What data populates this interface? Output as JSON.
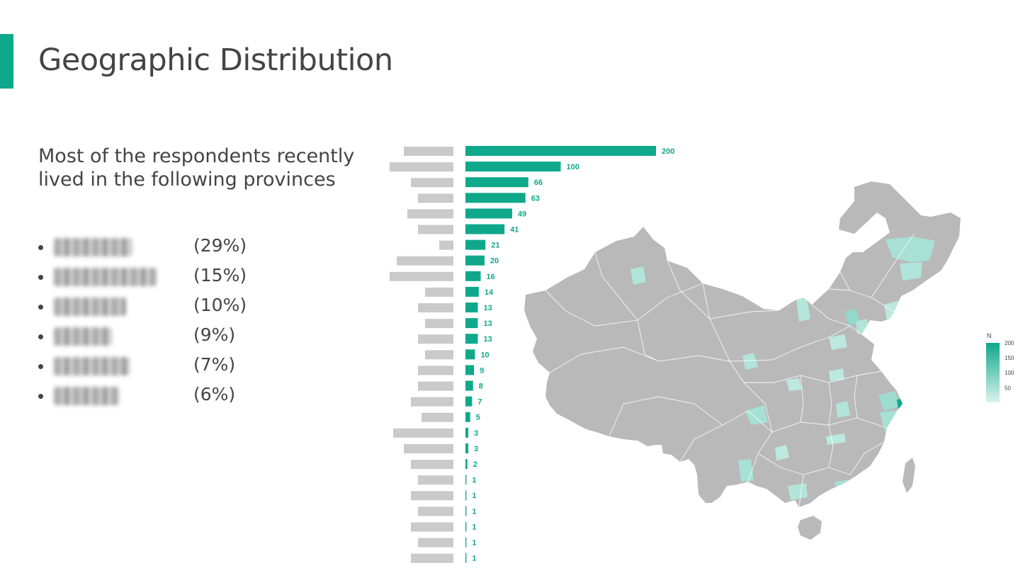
{
  "page": {
    "title": "Geographic Distribution",
    "subtitle": "Most of the respondents recently lived in the following provinces",
    "accent_color": "#0fa88a"
  },
  "top_provinces": [
    {
      "name": "",
      "percent": "(29%)"
    },
    {
      "name": "",
      "percent": "(15%)"
    },
    {
      "name": "",
      "percent": "(10%)"
    },
    {
      "name": "",
      "percent": "(9%)"
    },
    {
      "name": "",
      "percent": "(7%)"
    },
    {
      "name": "",
      "percent": "(6%)"
    }
  ],
  "chart_data": [
    {
      "type": "bar",
      "orientation": "horizontal",
      "categories_blurred": true,
      "values": [
        200,
        100,
        66,
        63,
        49,
        41,
        21,
        20,
        16,
        14,
        13,
        13,
        13,
        10,
        9,
        8,
        7,
        5,
        3,
        3,
        2,
        1,
        1,
        1,
        1,
        1,
        1
      ],
      "xlim": [
        0,
        200
      ],
      "bar_color": "#0fa88a",
      "label_color": "#0fa88a",
      "grid": false
    },
    {
      "type": "heatmap",
      "subtype": "choropleth-map",
      "legend": {
        "title": "N",
        "ticks": [
          200,
          150,
          100,
          50
        ],
        "placement": "right"
      },
      "scale_range": [
        1,
        200
      ],
      "color_low": "#d9f3ee",
      "color_high": "#0fa88a",
      "missing_color": "#b9b9b9"
    }
  ]
}
